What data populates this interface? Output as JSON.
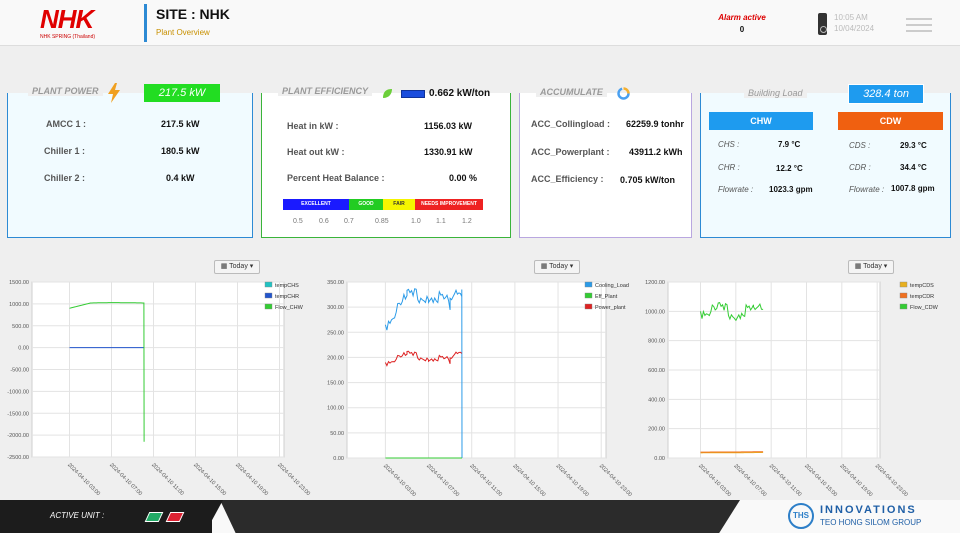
{
  "header": {
    "logo_text": "NHK",
    "logo_subtext": "NHK SPRING (Thailand)",
    "site_title": "SITE : NHK",
    "site_subtitle": "Plant Overview",
    "alarm_label": "Alarm active",
    "alarm_value": "0",
    "time": "10:05 AM",
    "date": "10/04/2024"
  },
  "plant_power": {
    "title": "PLANT POWER",
    "badge": "217.5 kW",
    "badge_color": "#22dd22",
    "rows": [
      {
        "label": "AMCC 1 :",
        "value": "217.5 kW"
      },
      {
        "label": "Chiller 1 :",
        "value": "180.5 kW"
      },
      {
        "label": "Chiller 2 :",
        "value": "0.4 kW"
      }
    ]
  },
  "plant_efficiency": {
    "title": "PLANT EFFICIENCY",
    "value": "0.662 kW/ton",
    "rows": [
      {
        "label": "Heat in kW :",
        "value": "1156.03 kW"
      },
      {
        "label": "Heat out kW :",
        "value": "1330.91 kW"
      },
      {
        "label": "Percent Heat Balance :",
        "value": "0.00 %"
      }
    ],
    "scale": [
      {
        "label": "EXCELLENT",
        "color": "#1a1aff",
        "text_color": "#ffffff"
      },
      {
        "label": "GOOD",
        "color": "#22cc22",
        "text_color": "#ffffff"
      },
      {
        "label": "FAIR",
        "color": "#f5f500",
        "text_color": "#333333"
      },
      {
        "label": "NEEDS IMPROVEMENT",
        "color": "#ee2222",
        "text_color": "#ffffff"
      }
    ],
    "scale_ticks": [
      "0.5",
      "0.6",
      "0.7",
      "0.85",
      "1.0",
      "1.1",
      "1.2"
    ]
  },
  "accumulate": {
    "title": "ACCUMULATE",
    "rows": [
      {
        "label": "ACC_Collingload :",
        "value": "62259.9 tonhr"
      },
      {
        "label": "ACC_Powerplant :",
        "value": "43911.2 kWh"
      },
      {
        "label": "ACC_Efficiency :",
        "value": "0.705 kW/ton"
      }
    ]
  },
  "building_load": {
    "title": "Building Load",
    "badge": "328.4 ton",
    "chw": {
      "title": "CHW",
      "color": "#1e9bef",
      "rows": [
        {
          "label": "CHS :",
          "value": "7.9 °C"
        },
        {
          "label": "CHR :",
          "value": "12.2 °C"
        },
        {
          "label": "Flowrate :",
          "value": "1023.3 gpm"
        }
      ]
    },
    "cdw": {
      "title": "CDW",
      "color": "#f06010",
      "rows": [
        {
          "label": "CDS :",
          "value": "29.3 °C"
        },
        {
          "label": "CDR :",
          "value": "34.4 °C"
        },
        {
          "label": "Flowrate :",
          "value": "1007.8 gpm"
        }
      ]
    }
  },
  "charts": {
    "button_label": "Today",
    "x_ticks": [
      "2024-04-10 03:00",
      "2024-04-10 07:00",
      "2024-04-10 11:00",
      "2024-04-10 15:00",
      "2024-04-10 19:00",
      "2024-04-10 23:00"
    ]
  },
  "chart_data": [
    {
      "type": "line",
      "ylim": [
        -2500,
        1500
      ],
      "y_ticks": [
        "1500.00",
        "1000.00",
        "500.00",
        "0.00",
        "-500.00",
        "-1000.00",
        "-1500.00",
        "-2000.00",
        "-2500.00"
      ],
      "x": [
        "2024-04-10 03:00",
        "2024-04-10 05:00",
        "2024-04-10 07:00",
        "2024-04-10 09:00",
        "2024-04-10 10:05",
        "2024-04-10 10:06"
      ],
      "series": [
        {
          "name": "tempCHS",
          "color": "#22c3c3",
          "values": [
            null,
            null,
            null,
            null,
            null,
            null
          ]
        },
        {
          "name": "tempCHR",
          "color": "#2255cc",
          "values": [
            0,
            0,
            0,
            0,
            0,
            null
          ]
        },
        {
          "name": "Flow_CHW",
          "color": "#33cc33",
          "values": [
            900,
            1020,
            1030,
            1025,
            1020,
            -2150
          ]
        }
      ]
    },
    {
      "type": "line",
      "ylim": [
        0,
        350
      ],
      "y_ticks": [
        "350.00",
        "300.00",
        "250.00",
        "200.00",
        "150.00",
        "100.00",
        "50.00",
        "0.00"
      ],
      "x": [
        "2024-04-10 03:00",
        "2024-04-10 05:00",
        "2024-04-10 07:00",
        "2024-04-10 09:00",
        "2024-04-10 10:05",
        "2024-04-10 10:06"
      ],
      "series": [
        {
          "name": "Cooling_Load",
          "color": "#2b9be8",
          "values": [
            265,
            320,
            325,
            310,
            335,
            0
          ]
        },
        {
          "name": "Eff_Plant",
          "color": "#33cc33",
          "values": [
            0,
            0,
            0,
            0,
            0,
            0
          ]
        },
        {
          "name": "Power_plant",
          "color": "#dd2222",
          "values": [
            190,
            205,
            200,
            195,
            215,
            null
          ]
        }
      ]
    },
    {
      "type": "line",
      "ylim": [
        0,
        1200
      ],
      "y_ticks": [
        "1200.00",
        "1000.00",
        "800.00",
        "600.00",
        "400.00",
        "200.00",
        "0.00"
      ],
      "x": [
        "2024-04-10 03:00",
        "2024-04-10 05:00",
        "2024-04-10 07:00",
        "2024-04-10 09:00",
        "2024-04-10 10:05"
      ],
      "series": [
        {
          "name": "tempCDS",
          "color": "#e8b020",
          "values": [
            35,
            36,
            36,
            37,
            38
          ]
        },
        {
          "name": "tempCDR",
          "color": "#f07020",
          "values": [
            40,
            41,
            41,
            42,
            42
          ]
        },
        {
          "name": "Flow_CDW",
          "color": "#33cc33",
          "values": [
            1000,
            1010,
            990,
            1005,
            1015
          ]
        }
      ]
    }
  ],
  "footer": {
    "active_label": "ACTIVE UNIT :",
    "unit_colors": [
      "#22aa66",
      "#dd2233"
    ],
    "brand_mark": "THS",
    "brand_name": "INNOVATIONS",
    "brand_sub": "TEO HONG SILOM GROUP"
  }
}
